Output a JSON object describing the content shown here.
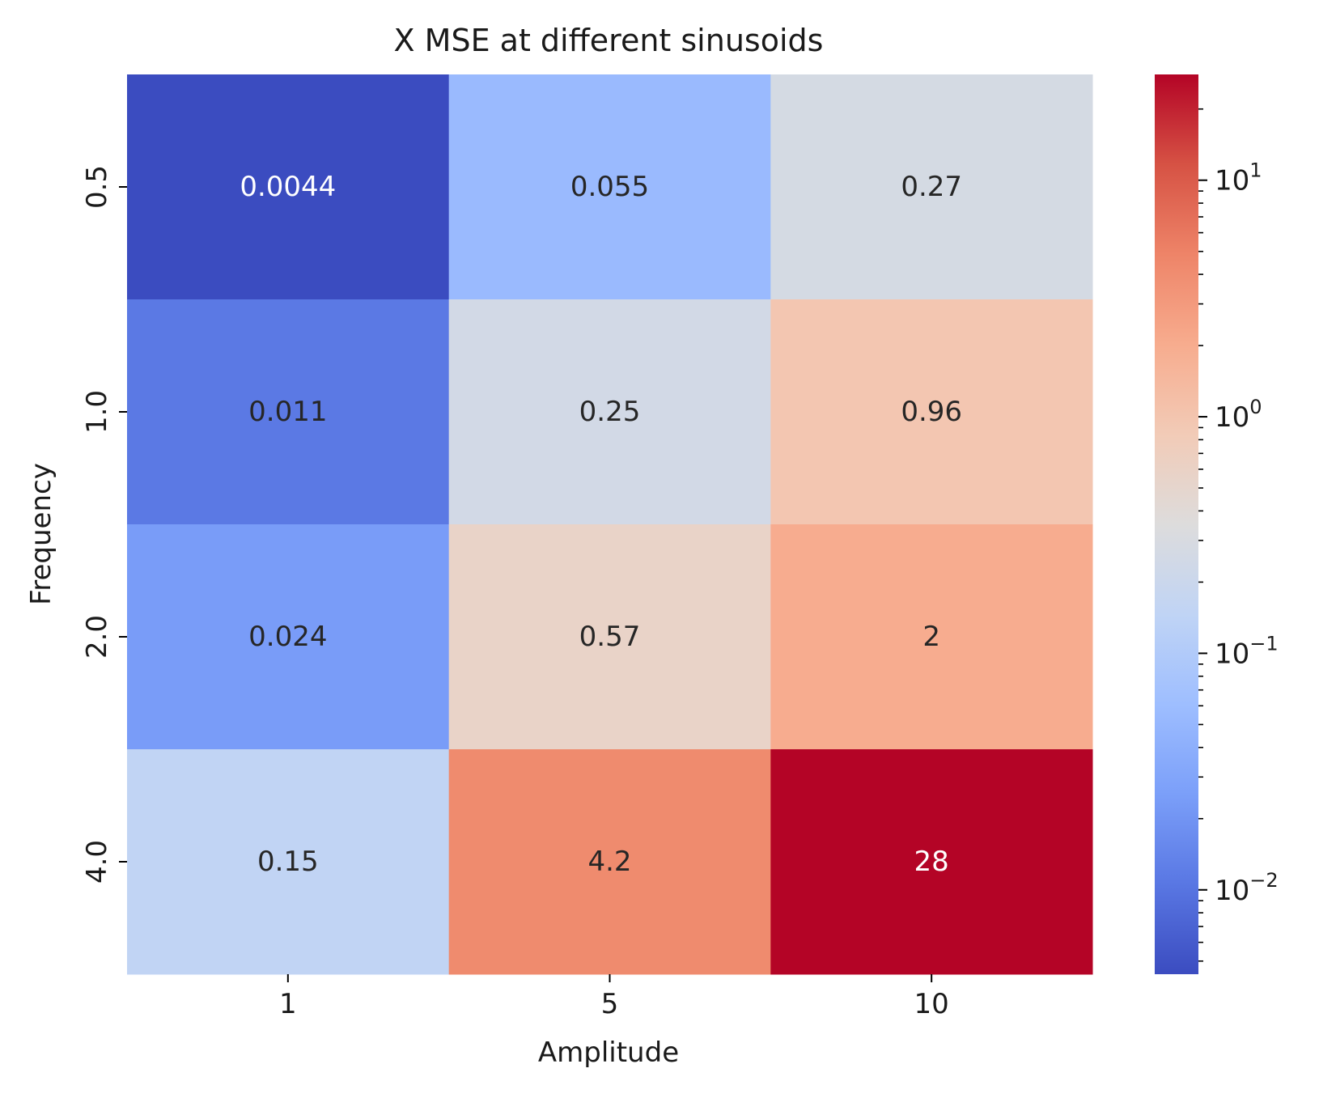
{
  "chart_data": {
    "type": "heatmap",
    "title": "X MSE at different sinusoids",
    "xlabel": "Amplitude",
    "ylabel": "Frequency",
    "x_categories": [
      "1",
      "5",
      "10"
    ],
    "y_categories": [
      "0.5",
      "1.0",
      "2.0",
      "4.0"
    ],
    "values": [
      [
        0.0044,
        0.055,
        0.27
      ],
      [
        0.011,
        0.25,
        0.96
      ],
      [
        0.024,
        0.57,
        2
      ],
      [
        0.15,
        4.2,
        28
      ]
    ],
    "cell_labels": [
      [
        "0.0044",
        "0.055",
        "0.27"
      ],
      [
        "0.011",
        "0.25",
        "0.96"
      ],
      [
        "0.024",
        "0.57",
        "2"
      ],
      [
        "0.15",
        "4.2",
        "28"
      ]
    ],
    "colormap": "coolwarm",
    "colorbar": {
      "scale": "log",
      "range": [
        0.0044,
        28
      ],
      "tick_values": [
        0.01,
        0.1,
        1,
        10
      ],
      "tick_labels": [
        {
          "base": "10",
          "exp": "−2"
        },
        {
          "base": "10",
          "exp": "−1"
        },
        {
          "base": "10",
          "exp": "0"
        },
        {
          "base": "10",
          "exp": "1"
        }
      ]
    },
    "colors": {
      "coolwarm_stops": [
        "#3b4cc0",
        "#5977e3",
        "#7b9ff9",
        "#9ebeff",
        "#c0d4f5",
        "#dddcdc",
        "#f2cbb7",
        "#f7ac8e",
        "#ee8468",
        "#d65244",
        "#b40426"
      ],
      "label_light": "#ffffff",
      "label_dark": "#262626"
    }
  }
}
